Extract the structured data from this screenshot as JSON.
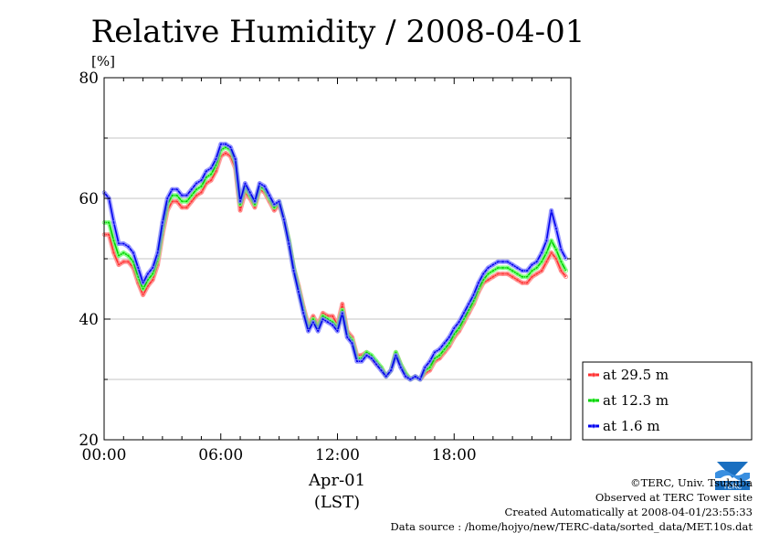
{
  "chart_data": {
    "type": "line",
    "title": "Relative Humidity / 2008-04-01",
    "ylabel": "[%]",
    "xlabel": "Apr-01",
    "xlabel2": "(LST)",
    "ylim": [
      20,
      80
    ],
    "xlim": [
      0,
      24
    ],
    "yticks": [
      20,
      40,
      60,
      80
    ],
    "ytick_labels": [
      "20",
      "40",
      "60",
      "80"
    ],
    "xticks": [
      0,
      6,
      12,
      18
    ],
    "xtick_labels": [
      "00:00",
      "06:00",
      "12:00",
      "18:00"
    ],
    "grid": true,
    "legend_position": "bottom-right outside plot",
    "x": [
      0.0,
      0.25,
      0.5,
      0.75,
      1.0,
      1.25,
      1.5,
      1.75,
      2.0,
      2.25,
      2.5,
      2.75,
      3.0,
      3.25,
      3.5,
      3.75,
      4.0,
      4.25,
      4.5,
      4.75,
      5.0,
      5.25,
      5.5,
      5.75,
      6.0,
      6.25,
      6.5,
      6.75,
      7.0,
      7.25,
      7.5,
      7.75,
      8.0,
      8.25,
      8.5,
      8.75,
      9.0,
      9.25,
      9.5,
      9.75,
      10.0,
      10.25,
      10.5,
      10.75,
      11.0,
      11.25,
      11.5,
      11.75,
      12.0,
      12.25,
      12.5,
      12.75,
      13.0,
      13.25,
      13.5,
      13.75,
      14.0,
      14.25,
      14.5,
      14.75,
      15.0,
      15.25,
      15.5,
      15.75,
      16.0,
      16.25,
      16.5,
      16.75,
      17.0,
      17.25,
      17.5,
      17.75,
      18.0,
      18.25,
      18.5,
      18.75,
      19.0,
      19.25,
      19.5,
      19.75,
      20.0,
      20.25,
      20.5,
      20.75,
      21.0,
      21.25,
      21.5,
      21.75,
      22.0,
      22.25,
      22.5,
      22.75,
      23.0,
      23.25,
      23.5,
      23.75
    ],
    "series": [
      {
        "name": "at 29.5 m",
        "color": "#ff3030",
        "marker_color": "#ff8080",
        "values": [
          54.0,
          54.0,
          51.0,
          49.0,
          49.5,
          49.5,
          48.5,
          46.0,
          44.0,
          45.5,
          46.5,
          49.0,
          54.0,
          58.0,
          59.5,
          59.5,
          58.5,
          58.5,
          59.5,
          60.5,
          61.0,
          62.5,
          63.0,
          64.5,
          67.0,
          67.5,
          67.0,
          65.0,
          58.0,
          61.0,
          60.0,
          58.5,
          61.5,
          61.0,
          59.5,
          58.0,
          59.0,
          56.5,
          53.0,
          48.5,
          45.5,
          42.0,
          39.0,
          40.5,
          39.0,
          41.0,
          40.5,
          40.5,
          39.0,
          42.5,
          38.0,
          37.0,
          34.0,
          34.0,
          34.5,
          33.5,
          32.5,
          32.0,
          30.5,
          31.5,
          34.5,
          32.5,
          31.0,
          30.0,
          30.5,
          30.0,
          31.0,
          31.5,
          33.0,
          33.5,
          34.5,
          35.5,
          37.0,
          38.0,
          39.5,
          41.0,
          42.5,
          44.5,
          46.0,
          46.5,
          47.0,
          47.5,
          47.5,
          47.5,
          47.0,
          46.5,
          46.0,
          46.0,
          47.0,
          47.5,
          48.0,
          49.5,
          51.0,
          50.0,
          48.0,
          47.0
        ]
      },
      {
        "name": "at 12.3 m",
        "color": "#00d000",
        "marker_color": "#70ff70",
        "values": [
          56.0,
          56.0,
          53.0,
          50.5,
          51.0,
          50.5,
          49.5,
          47.0,
          45.0,
          46.5,
          47.5,
          50.0,
          55.0,
          59.0,
          60.5,
          60.5,
          59.5,
          59.5,
          60.5,
          61.5,
          62.0,
          63.5,
          64.0,
          65.5,
          68.0,
          68.5,
          68.0,
          66.0,
          59.0,
          62.0,
          60.5,
          59.0,
          62.0,
          61.5,
          60.0,
          58.5,
          59.5,
          56.5,
          53.0,
          48.5,
          45.0,
          41.5,
          38.5,
          40.0,
          38.5,
          40.5,
          40.0,
          39.5,
          38.5,
          41.5,
          37.5,
          36.5,
          33.5,
          33.5,
          34.5,
          34.0,
          33.0,
          32.0,
          30.5,
          31.5,
          34.5,
          32.5,
          31.0,
          30.0,
          30.5,
          30.0,
          31.5,
          32.0,
          33.5,
          34.0,
          35.0,
          36.0,
          37.5,
          38.5,
          40.0,
          41.5,
          43.0,
          45.0,
          46.5,
          47.5,
          48.0,
          48.5,
          48.5,
          48.5,
          48.0,
          47.5,
          47.0,
          47.0,
          48.0,
          48.5,
          49.5,
          51.0,
          53.0,
          51.5,
          49.5,
          48.0
        ]
      },
      {
        "name": "at 1.6 m",
        "color": "#0000ee",
        "marker_color": "#8080ff",
        "values": [
          61.0,
          60.0,
          56.0,
          52.5,
          52.5,
          52.0,
          51.0,
          48.5,
          46.0,
          47.5,
          48.5,
          51.0,
          56.0,
          60.0,
          61.5,
          61.5,
          60.5,
          60.5,
          61.5,
          62.5,
          63.0,
          64.5,
          65.0,
          66.5,
          69.0,
          69.0,
          68.5,
          66.5,
          59.5,
          62.5,
          61.0,
          59.5,
          62.5,
          62.0,
          60.5,
          59.0,
          59.5,
          56.5,
          52.5,
          48.0,
          44.5,
          41.0,
          38.0,
          39.5,
          38.0,
          40.0,
          39.5,
          39.0,
          38.0,
          41.0,
          37.0,
          36.0,
          33.0,
          33.0,
          34.0,
          33.5,
          32.5,
          31.5,
          30.5,
          31.5,
          34.0,
          32.0,
          30.5,
          30.0,
          30.5,
          30.0,
          32.0,
          33.0,
          34.5,
          35.0,
          36.0,
          37.0,
          38.5,
          39.5,
          41.0,
          42.5,
          44.0,
          46.0,
          47.5,
          48.5,
          49.0,
          49.5,
          49.5,
          49.5,
          49.0,
          48.5,
          48.0,
          48.0,
          49.0,
          49.5,
          51.0,
          53.0,
          58.0,
          55.0,
          51.5,
          50.0
        ]
      }
    ]
  },
  "credits": {
    "copyright": "©TERC, Univ. Tsukuba",
    "observed": "Observed at TERC Tower site",
    "created": "Created Automatically at 2008-04-01/23:55:33",
    "source": "Data source : /home/hojyo/new/TERC-data/sorted_data/MET.10s.dat"
  },
  "logo": {
    "text": "TERC",
    "color": "#1a6fc0"
  }
}
